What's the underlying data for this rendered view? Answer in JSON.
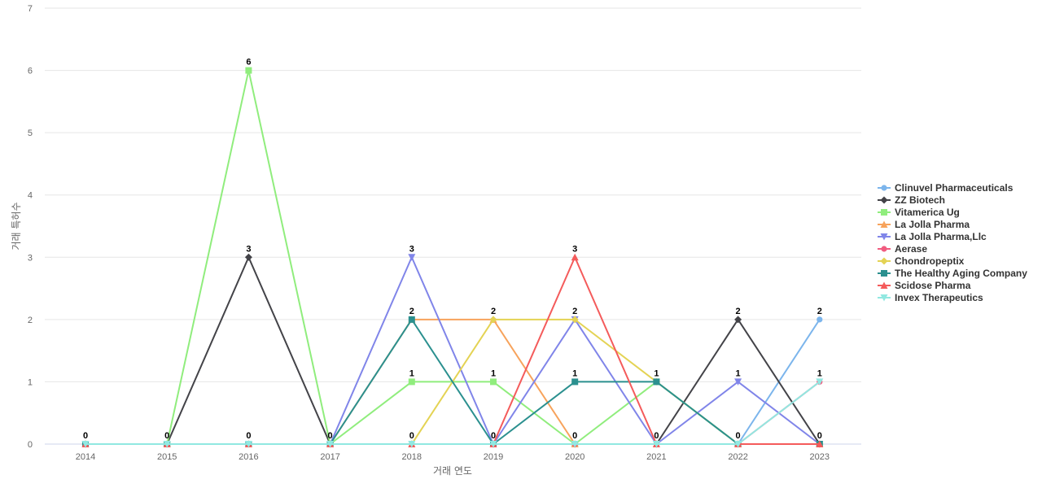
{
  "chart_data": {
    "type": "line",
    "title": "",
    "xlabel": "거래 연도",
    "ylabel": "거래 특허수",
    "x": [
      "2014",
      "2015",
      "2016",
      "2017",
      "2018",
      "2019",
      "2020",
      "2021",
      "2022",
      "2023"
    ],
    "ylim": [
      0,
      7
    ],
    "yticks": [
      "0",
      "1",
      "2",
      "3",
      "4",
      "5",
      "6",
      "7"
    ],
    "grid": true,
    "legend": "right",
    "series": [
      {
        "name": "Clinuvel Pharmaceuticals",
        "values": [
          0,
          0,
          0,
          0,
          0,
          0,
          0,
          0,
          0,
          2
        ],
        "color": "#7cb5ec",
        "marker": "circle"
      },
      {
        "name": "ZZ Biotech",
        "values": [
          0,
          0,
          3,
          0,
          0,
          0,
          0,
          0,
          2,
          0
        ],
        "color": "#434348",
        "marker": "diamond"
      },
      {
        "name": "Vitamerica Ug",
        "values": [
          0,
          0,
          6,
          0,
          1,
          1,
          0,
          1,
          0,
          0
        ],
        "color": "#90ed7d",
        "marker": "square"
      },
      {
        "name": "La Jolla Pharma",
        "values": [
          0,
          0,
          0,
          0,
          2,
          2,
          0,
          0,
          0,
          0
        ],
        "color": "#f7a35c",
        "marker": "triangle"
      },
      {
        "name": "La Jolla Pharma,Llc",
        "values": [
          0,
          0,
          0,
          0,
          3,
          0,
          2,
          0,
          1,
          0
        ],
        "color": "#8085e9",
        "marker": "triangle-down"
      },
      {
        "name": "Aerase",
        "values": [
          0,
          0,
          0,
          0,
          0,
          0,
          0,
          0,
          0,
          1
        ],
        "color": "#f15c80",
        "marker": "circle"
      },
      {
        "name": "Chondropeptix",
        "values": [
          0,
          0,
          0,
          0,
          0,
          2,
          2,
          1,
          0,
          0
        ],
        "color": "#e4d354",
        "marker": "diamond"
      },
      {
        "name": "The Healthy Aging Company",
        "values": [
          0,
          0,
          0,
          0,
          2,
          0,
          1,
          1,
          0,
          0
        ],
        "color": "#2b908f",
        "marker": "square"
      },
      {
        "name": "Scidose Pharma",
        "values": [
          0,
          0,
          0,
          0,
          0,
          0,
          3,
          0,
          0,
          0
        ],
        "color": "#f45b5b",
        "marker": "triangle"
      },
      {
        "name": "Invex Therapeutics",
        "values": [
          0,
          0,
          0,
          0,
          0,
          0,
          0,
          0,
          0,
          1
        ],
        "color": "#91e8e1",
        "marker": "triangle-down"
      }
    ],
    "data_labels": [
      {
        "x": "2014",
        "text": "0"
      },
      {
        "x": "2015",
        "text": "0"
      },
      {
        "x": "2016",
        "text": "6"
      },
      {
        "x": "2016",
        "text": "3"
      },
      {
        "x": "2016",
        "text": "0"
      },
      {
        "x": "2017",
        "text": "0"
      },
      {
        "x": "2018",
        "text": "3"
      },
      {
        "x": "2018",
        "text": "2"
      },
      {
        "x": "2018",
        "text": "1"
      },
      {
        "x": "2018",
        "text": "0"
      },
      {
        "x": "2019",
        "text": "2"
      },
      {
        "x": "2019",
        "text": "1"
      },
      {
        "x": "2019",
        "text": "0"
      },
      {
        "x": "2020",
        "text": "3"
      },
      {
        "x": "2020",
        "text": "2"
      },
      {
        "x": "2020",
        "text": "1"
      },
      {
        "x": "2020",
        "text": "0"
      },
      {
        "x": "2021",
        "text": "1"
      },
      {
        "x": "2021",
        "text": "0"
      },
      {
        "x": "2022",
        "text": "2"
      },
      {
        "x": "2022",
        "text": "1"
      },
      {
        "x": "2022",
        "text": "0"
      },
      {
        "x": "2023",
        "text": "2"
      },
      {
        "x": "2023",
        "text": "1"
      },
      {
        "x": "2023",
        "text": "0"
      }
    ]
  }
}
